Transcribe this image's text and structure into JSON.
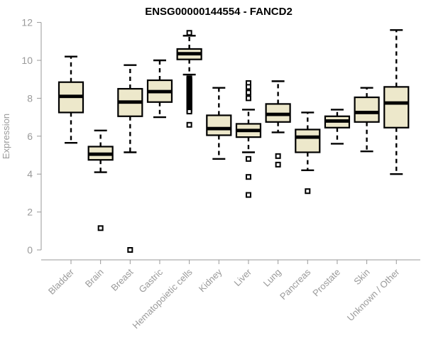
{
  "chart_data": {
    "type": "boxplot",
    "title": "ENSG00000144554 - FANCD2",
    "ylabel": "Expression",
    "ylim": [
      0,
      12
    ],
    "yticks": [
      0,
      2,
      4,
      6,
      8,
      10,
      12
    ],
    "grid": false,
    "legend": "none",
    "colors": {
      "box_fill": "#EDE8CB",
      "box_stroke": "#000000",
      "axis_line": "#999999",
      "axis_text": "#9a9a9a",
      "title_text": "#000000"
    },
    "categories": [
      "Bladder",
      "Brain",
      "Breast",
      "Gastric",
      "Hematopoietic cells",
      "Kidney",
      "Liver",
      "Lung",
      "Pancreas",
      "Prostate",
      "Skin",
      "Unknown / Other"
    ],
    "series": [
      {
        "name": "Bladder",
        "whisker_low": 5.65,
        "q1": 7.25,
        "median": 8.1,
        "q3": 8.85,
        "whisker_high": 10.2,
        "outliers": []
      },
      {
        "name": "Brain",
        "whisker_low": 4.1,
        "q1": 4.75,
        "median": 5.05,
        "q3": 5.45,
        "whisker_high": 6.3,
        "outliers": [
          1.15
        ]
      },
      {
        "name": "Breast",
        "whisker_low": 5.15,
        "q1": 7.05,
        "median": 7.8,
        "q3": 8.5,
        "whisker_high": 9.75,
        "outliers": [
          0.0
        ]
      },
      {
        "name": "Gastric",
        "whisker_low": 7.0,
        "q1": 7.8,
        "median": 8.35,
        "q3": 8.95,
        "whisker_high": 10.0,
        "outliers": []
      },
      {
        "name": "Hematopoietic cells",
        "whisker_low": 9.25,
        "q1": 10.05,
        "median": 10.35,
        "q3": 10.6,
        "whisker_high": 11.3,
        "outliers": [
          11.45,
          9.05,
          9.0,
          8.95,
          8.9,
          8.85,
          8.8,
          8.75,
          8.7,
          8.65,
          8.6,
          8.55,
          8.5,
          8.45,
          8.4,
          8.35,
          8.3,
          8.25,
          8.2,
          8.15,
          8.1,
          8.05,
          8.0,
          7.95,
          7.9,
          7.85,
          7.8,
          7.75,
          7.7,
          7.65,
          7.6,
          7.55,
          7.5,
          7.45,
          7.4,
          7.35,
          7.3,
          6.6
        ]
      },
      {
        "name": "Kidney",
        "whisker_low": 4.8,
        "q1": 6.05,
        "median": 6.4,
        "q3": 7.1,
        "whisker_high": 8.55,
        "outliers": []
      },
      {
        "name": "Liver",
        "whisker_low": 5.15,
        "q1": 5.95,
        "median": 6.3,
        "q3": 6.65,
        "whisker_high": 7.4,
        "outliers": [
          8.8,
          8.6,
          8.3,
          8.0,
          4.8,
          3.85,
          2.9
        ]
      },
      {
        "name": "Lung",
        "whisker_low": 6.2,
        "q1": 6.75,
        "median": 7.15,
        "q3": 7.7,
        "whisker_high": 8.9,
        "outliers": [
          4.95,
          4.5
        ]
      },
      {
        "name": "Pancreas",
        "whisker_low": 4.2,
        "q1": 5.15,
        "median": 5.95,
        "q3": 6.35,
        "whisker_high": 7.25,
        "outliers": [
          3.1
        ]
      },
      {
        "name": "Prostate",
        "whisker_low": 5.6,
        "q1": 6.45,
        "median": 6.8,
        "q3": 7.05,
        "whisker_high": 7.4,
        "outliers": []
      },
      {
        "name": "Skin",
        "whisker_low": 5.2,
        "q1": 6.75,
        "median": 7.25,
        "q3": 8.05,
        "whisker_high": 8.55,
        "outliers": []
      },
      {
        "name": "Unknown / Other",
        "whisker_low": 4.0,
        "q1": 6.45,
        "median": 7.75,
        "q3": 8.6,
        "whisker_high": 11.6,
        "outliers": []
      }
    ]
  }
}
